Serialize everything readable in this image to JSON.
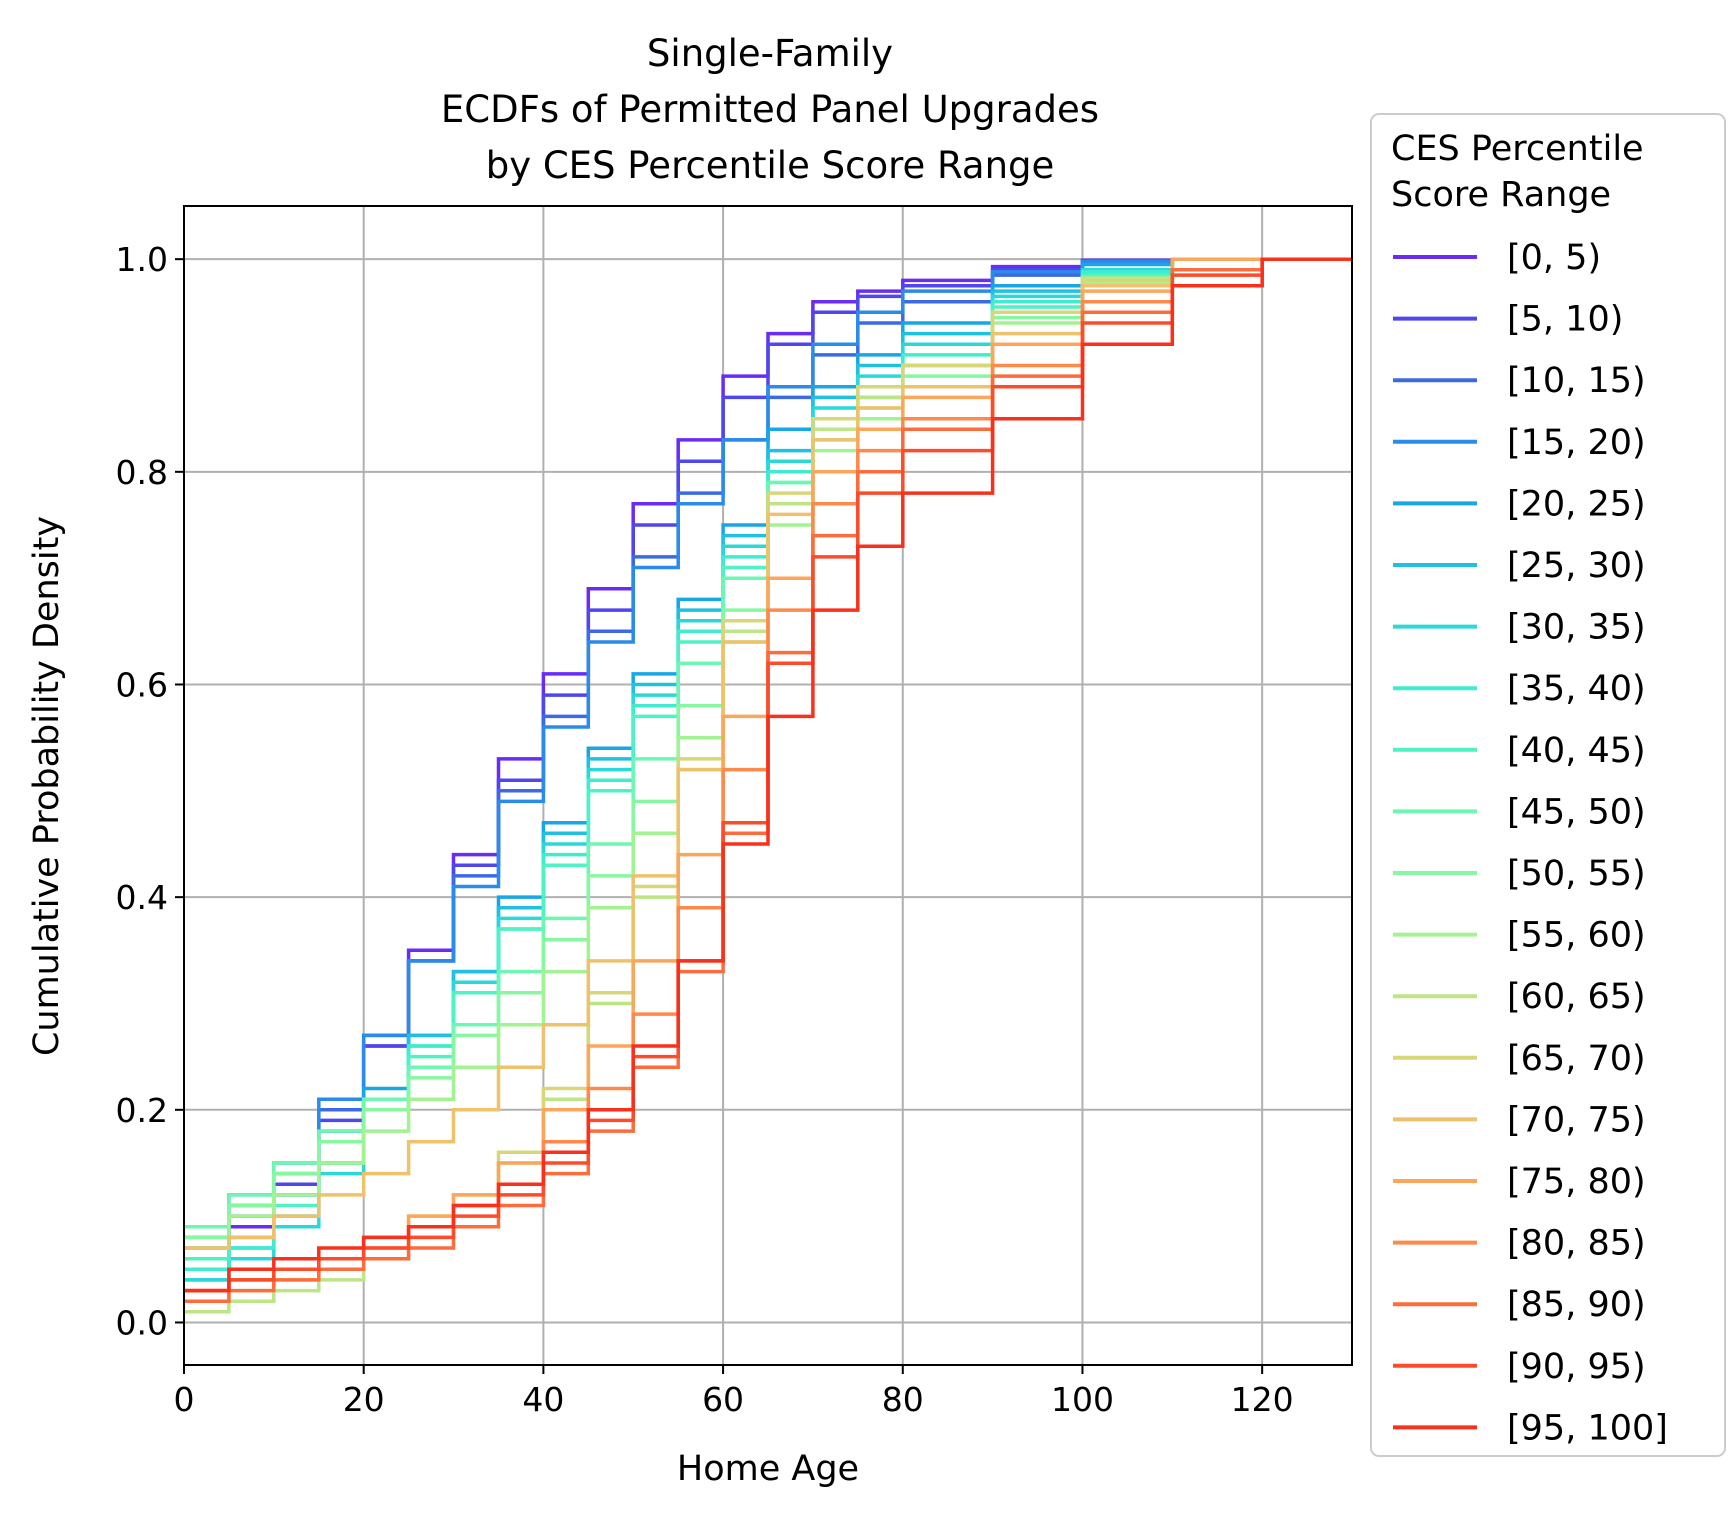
{
  "chart_data": {
    "type": "line",
    "step": true,
    "title_lines": [
      "Single-Family",
      "ECDFs of Permitted Panel Upgrades",
      "by CES Percentile Score Range"
    ],
    "xlabel": "Home Age",
    "ylabel": "Cumulative Probability Density",
    "xlim": [
      0,
      130
    ],
    "ylim": [
      -0.04,
      1.05
    ],
    "xticks": [
      0,
      20,
      40,
      60,
      80,
      100,
      120
    ],
    "xtick_labels": [
      "0",
      "20",
      "40",
      "60",
      "80",
      "100",
      "120"
    ],
    "yticks": [
      0.0,
      0.2,
      0.4,
      0.6,
      0.8,
      1.0
    ],
    "ytick_labels": [
      "0.0",
      "0.2",
      "0.4",
      "0.6",
      "0.8",
      "1.0"
    ],
    "grid": true,
    "legend": {
      "title_lines": [
        "CES Percentile",
        "Score Range"
      ],
      "placement": "outside-right"
    },
    "series": [
      {
        "name": "[0, 5)",
        "color": "#6a2cf5",
        "x": [
          0,
          5,
          10,
          15,
          20,
          25,
          30,
          35,
          40,
          45,
          50,
          55,
          60,
          65,
          70,
          75,
          80,
          90,
          100,
          110,
          120,
          130
        ],
        "y": [
          0.06,
          0.09,
          0.12,
          0.18,
          0.26,
          0.35,
          0.44,
          0.53,
          0.61,
          0.69,
          0.77,
          0.83,
          0.89,
          0.93,
          0.96,
          0.97,
          0.98,
          0.993,
          0.999,
          1.0,
          1.0,
          1.0
        ]
      },
      {
        "name": "[5, 10)",
        "color": "#4f46ee",
        "x": [
          0,
          5,
          10,
          15,
          20,
          25,
          30,
          35,
          40,
          45,
          50,
          55,
          60,
          65,
          70,
          75,
          80,
          90,
          100,
          110,
          120,
          130
        ],
        "y": [
          0.07,
          0.1,
          0.13,
          0.19,
          0.26,
          0.34,
          0.43,
          0.51,
          0.59,
          0.67,
          0.75,
          0.81,
          0.87,
          0.92,
          0.95,
          0.965,
          0.975,
          0.99,
          0.998,
          1.0,
          1.0,
          1.0
        ]
      },
      {
        "name": "[10, 15)",
        "color": "#3c6ae6",
        "x": [
          0,
          5,
          10,
          15,
          20,
          25,
          30,
          35,
          40,
          45,
          50,
          55,
          60,
          65,
          70,
          75,
          80,
          90,
          100,
          110,
          120,
          130
        ],
        "y": [
          0.08,
          0.11,
          0.14,
          0.2,
          0.27,
          0.34,
          0.42,
          0.5,
          0.57,
          0.65,
          0.72,
          0.78,
          0.83,
          0.87,
          0.91,
          0.94,
          0.96,
          0.985,
          0.997,
          1.0,
          1.0,
          1.0
        ]
      },
      {
        "name": "[15, 20)",
        "color": "#2a8be8",
        "x": [
          0,
          5,
          10,
          15,
          20,
          25,
          30,
          35,
          40,
          45,
          50,
          55,
          60,
          65,
          70,
          75,
          80,
          90,
          100,
          110,
          120,
          130
        ],
        "y": [
          0.09,
          0.12,
          0.15,
          0.21,
          0.27,
          0.34,
          0.41,
          0.49,
          0.56,
          0.64,
          0.71,
          0.77,
          0.83,
          0.88,
          0.92,
          0.95,
          0.97,
          0.988,
          0.998,
          1.0,
          1.0,
          1.0
        ]
      },
      {
        "name": "[20, 25)",
        "color": "#17a6e6",
        "x": [
          0,
          5,
          10,
          15,
          20,
          25,
          30,
          35,
          40,
          45,
          50,
          55,
          60,
          65,
          70,
          75,
          80,
          90,
          100,
          110,
          120,
          130
        ],
        "y": [
          0.05,
          0.08,
          0.12,
          0.17,
          0.22,
          0.27,
          0.33,
          0.4,
          0.47,
          0.54,
          0.61,
          0.68,
          0.75,
          0.84,
          0.88,
          0.91,
          0.94,
          0.975,
          0.995,
          1.0,
          1.0,
          1.0
        ]
      },
      {
        "name": "[25, 30)",
        "color": "#1fc0e2",
        "x": [
          0,
          5,
          10,
          15,
          20,
          25,
          30,
          35,
          40,
          45,
          50,
          55,
          60,
          65,
          70,
          75,
          80,
          90,
          100,
          110,
          120,
          130
        ],
        "y": [
          0.04,
          0.07,
          0.1,
          0.15,
          0.21,
          0.27,
          0.33,
          0.39,
          0.46,
          0.53,
          0.6,
          0.67,
          0.74,
          0.82,
          0.87,
          0.9,
          0.93,
          0.97,
          0.99,
          1.0,
          1.0,
          1.0
        ]
      },
      {
        "name": "[30, 35)",
        "color": "#2bd8d8",
        "x": [
          0,
          5,
          10,
          15,
          20,
          25,
          30,
          35,
          40,
          45,
          50,
          55,
          60,
          65,
          70,
          75,
          80,
          90,
          100,
          110,
          120,
          130
        ],
        "y": [
          0.04,
          0.06,
          0.09,
          0.14,
          0.2,
          0.26,
          0.32,
          0.38,
          0.45,
          0.52,
          0.59,
          0.66,
          0.73,
          0.81,
          0.86,
          0.89,
          0.92,
          0.965,
          0.99,
          1.0,
          1.0,
          1.0
        ]
      },
      {
        "name": "[35, 40)",
        "color": "#3feccf",
        "x": [
          0,
          5,
          10,
          15,
          20,
          25,
          30,
          35,
          40,
          45,
          50,
          55,
          60,
          65,
          70,
          75,
          80,
          90,
          100,
          110,
          120,
          130
        ],
        "y": [
          0.05,
          0.07,
          0.1,
          0.15,
          0.2,
          0.26,
          0.31,
          0.37,
          0.44,
          0.51,
          0.58,
          0.65,
          0.72,
          0.8,
          0.85,
          0.88,
          0.91,
          0.96,
          0.988,
          1.0,
          1.0,
          1.0
        ]
      },
      {
        "name": "[40, 45)",
        "color": "#4ef2c3",
        "x": [
          0,
          5,
          10,
          15,
          20,
          25,
          30,
          35,
          40,
          45,
          50,
          55,
          60,
          65,
          70,
          75,
          80,
          90,
          100,
          110,
          120,
          130
        ],
        "y": [
          0.06,
          0.08,
          0.11,
          0.15,
          0.2,
          0.25,
          0.31,
          0.37,
          0.43,
          0.5,
          0.57,
          0.64,
          0.71,
          0.79,
          0.84,
          0.87,
          0.9,
          0.955,
          0.985,
          1.0,
          1.0,
          1.0
        ]
      },
      {
        "name": "[45, 50)",
        "color": "#6ef7b2",
        "x": [
          0,
          5,
          10,
          15,
          20,
          25,
          30,
          35,
          40,
          45,
          50,
          55,
          60,
          65,
          70,
          75,
          80,
          90,
          100,
          110,
          120,
          130
        ],
        "y": [
          0.09,
          0.12,
          0.15,
          0.18,
          0.21,
          0.24,
          0.28,
          0.33,
          0.38,
          0.45,
          0.53,
          0.62,
          0.7,
          0.79,
          0.84,
          0.87,
          0.9,
          0.95,
          0.983,
          1.0,
          1.0,
          1.0
        ]
      },
      {
        "name": "[50, 55)",
        "color": "#88f7a2",
        "x": [
          0,
          5,
          10,
          15,
          20,
          25,
          30,
          35,
          40,
          45,
          50,
          55,
          60,
          65,
          70,
          75,
          80,
          90,
          100,
          110,
          120,
          130
        ],
        "y": [
          0.08,
          0.11,
          0.14,
          0.17,
          0.2,
          0.23,
          0.27,
          0.31,
          0.36,
          0.42,
          0.49,
          0.58,
          0.67,
          0.77,
          0.83,
          0.86,
          0.89,
          0.945,
          0.98,
          1.0,
          1.0,
          1.0
        ]
      },
      {
        "name": "[55, 60)",
        "color": "#a2f392",
        "x": [
          0,
          5,
          10,
          15,
          20,
          25,
          30,
          35,
          40,
          45,
          50,
          55,
          60,
          65,
          70,
          75,
          80,
          90,
          100,
          110,
          120,
          130
        ],
        "y": [
          0.07,
          0.1,
          0.12,
          0.15,
          0.18,
          0.21,
          0.24,
          0.28,
          0.33,
          0.39,
          0.46,
          0.55,
          0.64,
          0.75,
          0.82,
          0.85,
          0.88,
          0.94,
          0.978,
          1.0,
          1.0,
          1.0
        ]
      },
      {
        "name": "[60, 65)",
        "color": "#bde585",
        "x": [
          0,
          5,
          10,
          15,
          20,
          25,
          30,
          35,
          40,
          45,
          50,
          55,
          60,
          65,
          70,
          75,
          80,
          90,
          100,
          110,
          120,
          130
        ],
        "y": [
          0.01,
          0.02,
          0.03,
          0.04,
          0.06,
          0.08,
          0.11,
          0.15,
          0.21,
          0.3,
          0.4,
          0.52,
          0.65,
          0.77,
          0.84,
          0.87,
          0.9,
          0.95,
          0.982,
          1.0,
          1.0,
          1.0
        ]
      },
      {
        "name": "[65, 70)",
        "color": "#d7d77a",
        "x": [
          0,
          5,
          10,
          15,
          20,
          25,
          30,
          35,
          40,
          45,
          50,
          55,
          60,
          65,
          70,
          75,
          80,
          90,
          100,
          110,
          120,
          130
        ],
        "y": [
          0.02,
          0.03,
          0.04,
          0.06,
          0.08,
          0.1,
          0.12,
          0.16,
          0.22,
          0.31,
          0.41,
          0.53,
          0.66,
          0.78,
          0.85,
          0.88,
          0.9,
          0.95,
          0.98,
          1.0,
          1.0,
          1.0
        ]
      },
      {
        "name": "[70, 75)",
        "color": "#eec26c",
        "x": [
          0,
          5,
          10,
          15,
          20,
          25,
          30,
          35,
          40,
          45,
          50,
          55,
          60,
          65,
          70,
          75,
          80,
          90,
          100,
          110,
          120,
          130
        ],
        "y": [
          0.07,
          0.08,
          0.1,
          0.12,
          0.14,
          0.17,
          0.2,
          0.24,
          0.28,
          0.34,
          0.42,
          0.52,
          0.64,
          0.76,
          0.83,
          0.86,
          0.88,
          0.93,
          0.975,
          1.0,
          1.0,
          1.0
        ]
      },
      {
        "name": "[75, 80)",
        "color": "#fca65c",
        "x": [
          0,
          5,
          10,
          15,
          20,
          25,
          30,
          35,
          40,
          45,
          50,
          55,
          60,
          65,
          70,
          75,
          80,
          90,
          100,
          110,
          120,
          130
        ],
        "y": [
          0.03,
          0.04,
          0.05,
          0.06,
          0.08,
          0.1,
          0.12,
          0.15,
          0.2,
          0.26,
          0.34,
          0.44,
          0.57,
          0.7,
          0.8,
          0.84,
          0.87,
          0.92,
          0.97,
          1.0,
          1.0,
          1.0
        ]
      },
      {
        "name": "[80, 85)",
        "color": "#fd8a4c",
        "x": [
          0,
          5,
          10,
          15,
          20,
          25,
          30,
          35,
          40,
          45,
          50,
          55,
          60,
          65,
          70,
          75,
          80,
          90,
          100,
          110,
          120,
          130
        ],
        "y": [
          0.03,
          0.04,
          0.05,
          0.06,
          0.07,
          0.09,
          0.11,
          0.13,
          0.17,
          0.22,
          0.29,
          0.39,
          0.52,
          0.67,
          0.77,
          0.82,
          0.85,
          0.9,
          0.96,
          0.99,
          1.0,
          1.0
        ]
      },
      {
        "name": "[85, 90)",
        "color": "#fd6c3c",
        "x": [
          0,
          5,
          10,
          15,
          20,
          25,
          30,
          35,
          40,
          45,
          50,
          55,
          60,
          65,
          70,
          75,
          80,
          90,
          100,
          110,
          120,
          130
        ],
        "y": [
          0.02,
          0.03,
          0.04,
          0.05,
          0.06,
          0.07,
          0.09,
          0.11,
          0.14,
          0.18,
          0.24,
          0.33,
          0.46,
          0.63,
          0.74,
          0.8,
          0.84,
          0.89,
          0.95,
          0.99,
          1.0,
          1.0
        ]
      },
      {
        "name": "[90, 95)",
        "color": "#fc4c2c",
        "x": [
          0,
          5,
          10,
          15,
          20,
          25,
          30,
          35,
          40,
          45,
          50,
          55,
          60,
          65,
          70,
          75,
          80,
          90,
          100,
          110,
          120,
          130
        ],
        "y": [
          0.03,
          0.04,
          0.05,
          0.06,
          0.07,
          0.08,
          0.1,
          0.12,
          0.15,
          0.19,
          0.25,
          0.34,
          0.47,
          0.62,
          0.72,
          0.78,
          0.82,
          0.88,
          0.94,
          0.985,
          1.0,
          1.0
        ]
      },
      {
        "name": "[95, 100]",
        "color": "#f9301c",
        "x": [
          0,
          5,
          10,
          15,
          20,
          25,
          30,
          35,
          40,
          45,
          50,
          55,
          60,
          65,
          70,
          75,
          80,
          90,
          100,
          110,
          120,
          130
        ],
        "y": [
          0.03,
          0.05,
          0.06,
          0.07,
          0.08,
          0.09,
          0.11,
          0.13,
          0.16,
          0.2,
          0.26,
          0.34,
          0.45,
          0.57,
          0.67,
          0.73,
          0.78,
          0.85,
          0.92,
          0.975,
          1.0,
          1.0
        ]
      }
    ]
  }
}
